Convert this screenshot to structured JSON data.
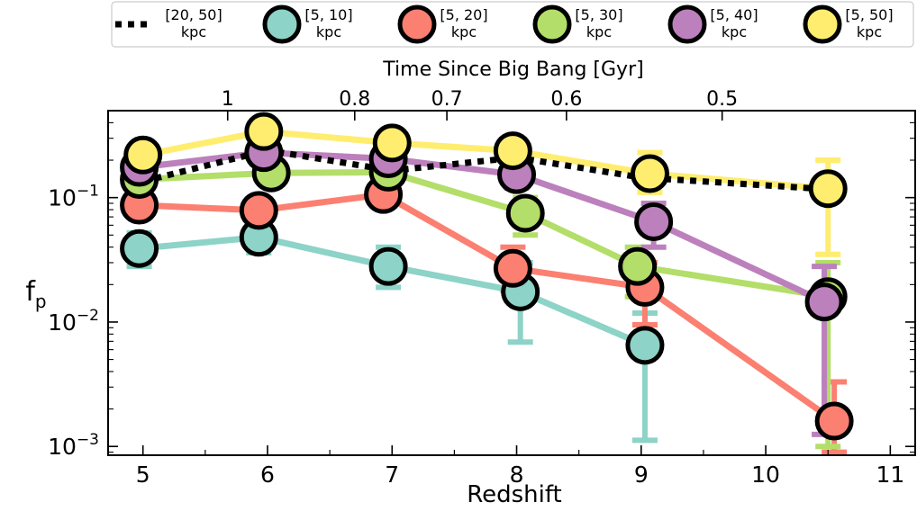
{
  "chart_data": {
    "type": "line",
    "xlabel": "Redshift",
    "ylabel_main": "f",
    "ylabel_sub": "p",
    "top_xlabel": "Time Since Big Bang [Gyr]",
    "y_scale": "log",
    "xlim": [
      4.72,
      11.2
    ],
    "ylim": [
      0.00085,
      0.5
    ],
    "x_ticks": [
      5,
      6,
      7,
      8,
      9,
      10,
      11
    ],
    "x_tick_labels": [
      "5",
      "6",
      "7",
      "8",
      "9",
      "10",
      "11"
    ],
    "y_ticks": [
      0.001,
      0.01,
      0.1
    ],
    "y_tick_base": [
      "10",
      "10",
      "10"
    ],
    "y_tick_exp": [
      "−3",
      "−2",
      "−1"
    ],
    "top_ticks": [
      {
        "label": "1",
        "z": 5.68
      },
      {
        "label": "0.8",
        "z": 6.7
      },
      {
        "label": "0.7",
        "z": 7.44
      },
      {
        "label": "0.6",
        "z": 8.4
      },
      {
        "label": "0.5",
        "z": 9.65
      }
    ],
    "grid": false,
    "legend_position": "top",
    "legend": [
      {
        "line1": "[20, 50]",
        "line2": "kpc",
        "kind": "dotted",
        "color": "#000000"
      },
      {
        "line1": "[5, 10]",
        "line2": "kpc",
        "kind": "marker",
        "color": "#8dd3c7"
      },
      {
        "line1": "[5, 20]",
        "line2": "kpc",
        "kind": "marker",
        "color": "#fb8072"
      },
      {
        "line1": "[5, 30]",
        "line2": "kpc",
        "kind": "marker",
        "color": "#b3de69"
      },
      {
        "line1": "[5, 40]",
        "line2": "kpc",
        "kind": "marker",
        "color": "#bc80bd"
      },
      {
        "line1": "[5, 50]",
        "line2": "kpc",
        "kind": "marker",
        "color": "#ffed6f"
      }
    ],
    "series": [
      {
        "name": "[20, 50] kpc",
        "color": "#000000",
        "style": "dotted",
        "markers": false,
        "points": [
          {
            "x": 5.0,
            "y": 0.135
          },
          {
            "x": 6.0,
            "y": 0.24
          },
          {
            "x": 7.0,
            "y": 0.165
          },
          {
            "x": 8.0,
            "y": 0.21
          },
          {
            "x": 9.0,
            "y": 0.145
          },
          {
            "x": 10.6,
            "y": 0.115
          }
        ]
      },
      {
        "name": "[5, 10] kpc",
        "color": "#8dd3c7",
        "style": "solid",
        "markers": true,
        "points": [
          {
            "x": 4.97,
            "y": 0.039,
            "lo": 0.028,
            "hi": 0.052
          },
          {
            "x": 5.93,
            "y": 0.048,
            "lo": 0.036,
            "hi": 0.06
          },
          {
            "x": 6.97,
            "y": 0.028,
            "lo": 0.019,
            "hi": 0.04
          },
          {
            "x": 8.03,
            "y": 0.0175,
            "lo": 0.0069,
            "hi": 0.03
          },
          {
            "x": 9.03,
            "y": 0.0065,
            "lo": 0.00112,
            "hi": 0.0118
          }
        ]
      },
      {
        "name": "[5, 20] kpc",
        "color": "#fb8072",
        "style": "solid",
        "markers": true,
        "points": [
          {
            "x": 4.97,
            "y": 0.087,
            "lo": 0.072,
            "hi": 0.1
          },
          {
            "x": 5.93,
            "y": 0.079,
            "lo": 0.065,
            "hi": 0.095
          },
          {
            "x": 6.93,
            "y": 0.106,
            "lo": 0.09,
            "hi": 0.12
          },
          {
            "x": 7.97,
            "y": 0.027,
            "lo": 0.018,
            "hi": 0.04
          },
          {
            "x": 9.03,
            "y": 0.019,
            "lo": 0.0095,
            "hi": 0.03
          },
          {
            "x": 10.55,
            "y": 0.0016,
            "lo": 0.0009,
            "hi": 0.0033
          }
        ]
      },
      {
        "name": "[5, 30] kpc",
        "color": "#b3de69",
        "style": "solid",
        "markers": true,
        "points": [
          {
            "x": 4.97,
            "y": 0.14,
            "lo": 0.12,
            "hi": 0.16
          },
          {
            "x": 6.03,
            "y": 0.158,
            "lo": 0.14,
            "hi": 0.18
          },
          {
            "x": 6.97,
            "y": 0.16,
            "lo": 0.14,
            "hi": 0.18
          },
          {
            "x": 8.07,
            "y": 0.075,
            "lo": 0.05,
            "hi": 0.1
          },
          {
            "x": 8.97,
            "y": 0.028,
            "lo": 0.016,
            "hi": 0.04
          },
          {
            "x": 10.5,
            "y": 0.016,
            "lo": 0.001,
            "hi": 0.03
          }
        ]
      },
      {
        "name": "[5, 40] kpc",
        "color": "#bc80bd",
        "style": "solid",
        "markers": true,
        "points": [
          {
            "x": 4.97,
            "y": 0.175,
            "lo": 0.15,
            "hi": 0.2
          },
          {
            "x": 5.97,
            "y": 0.23,
            "lo": 0.2,
            "hi": 0.26
          },
          {
            "x": 6.97,
            "y": 0.205,
            "lo": 0.18,
            "hi": 0.23
          },
          {
            "x": 8.0,
            "y": 0.153,
            "lo": 0.12,
            "hi": 0.19
          },
          {
            "x": 9.1,
            "y": 0.064,
            "lo": 0.04,
            "hi": 0.09
          },
          {
            "x": 10.47,
            "y": 0.0145,
            "lo": 0.00125,
            "hi": 0.028
          }
        ]
      },
      {
        "name": "[5, 50] kpc",
        "color": "#ffed6f",
        "style": "solid",
        "markers": true,
        "points": [
          {
            "x": 5.0,
            "y": 0.22,
            "lo": 0.19,
            "hi": 0.25
          },
          {
            "x": 5.97,
            "y": 0.34,
            "lo": 0.3,
            "hi": 0.38
          },
          {
            "x": 7.0,
            "y": 0.275,
            "lo": 0.24,
            "hi": 0.31
          },
          {
            "x": 7.97,
            "y": 0.238,
            "lo": 0.2,
            "hi": 0.28
          },
          {
            "x": 9.07,
            "y": 0.156,
            "lo": 0.11,
            "hi": 0.23
          },
          {
            "x": 10.5,
            "y": 0.118,
            "lo": 0.035,
            "hi": 0.2
          }
        ]
      }
    ]
  }
}
